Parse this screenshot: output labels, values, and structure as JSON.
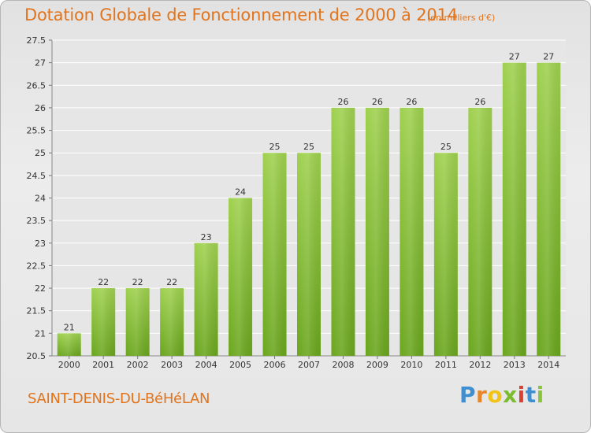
{
  "chart_data": {
    "type": "bar",
    "title": "Dotation Globale de Fonctionnement de 2000 à 2014",
    "subtitle": "(en milliers d'€)",
    "categories": [
      "2000",
      "2001",
      "2002",
      "2003",
      "2004",
      "2005",
      "2006",
      "2007",
      "2008",
      "2009",
      "2010",
      "2011",
      "2012",
      "2013",
      "2014"
    ],
    "values": [
      21,
      22,
      22,
      22,
      23,
      24,
      25,
      25,
      26,
      26,
      26,
      25,
      26,
      27,
      27
    ],
    "value_labels": [
      "21",
      "22",
      "22",
      "22",
      "23",
      "24",
      "25",
      "25",
      "26",
      "26",
      "26",
      "25",
      "26",
      "27",
      "27"
    ],
    "ylim": [
      20.5,
      27.5
    ],
    "yticks": [
      "20.5",
      "21",
      "21.5",
      "22",
      "22.5",
      "23",
      "23.5",
      "24",
      "24.5",
      "25",
      "25.5",
      "26",
      "26.5",
      "27",
      "27.5"
    ],
    "xlabel": "",
    "ylabel": "",
    "grid": true,
    "legend": "none",
    "colors": {
      "bar_top": "#9fd14f",
      "bar_bottom": "#6aa61e",
      "text": "#e2741d",
      "grid": "#ffffff"
    }
  },
  "footer": {
    "commune": "SAINT-DENIS-DU-BéHéLAN",
    "logo_text": "Proxiti",
    "logo_colors": [
      "#3f8fd0",
      "#e8862a",
      "#f2c318",
      "#7cbb2d",
      "#d9402f",
      "#3f8fd0",
      "#8ac43c"
    ]
  }
}
